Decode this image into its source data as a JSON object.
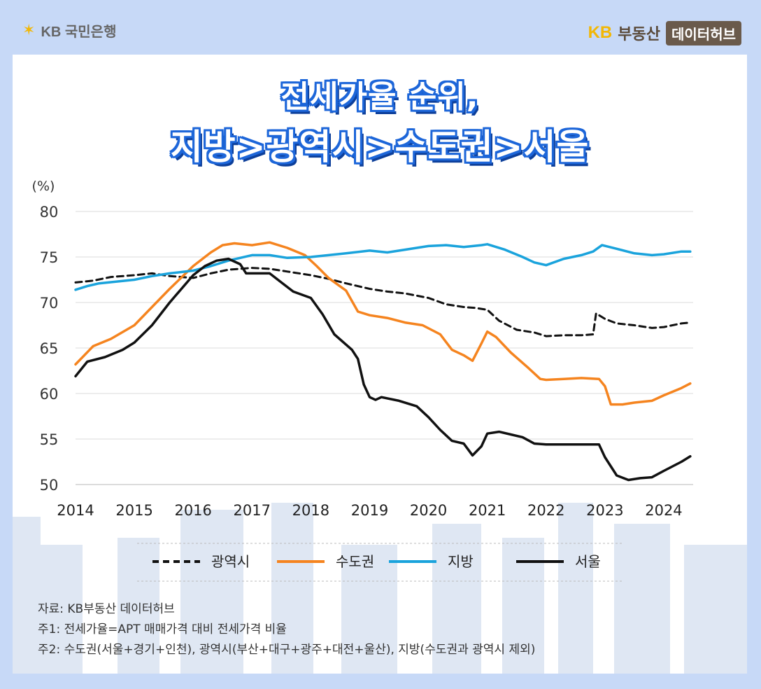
{
  "header": {
    "bank_logo": "KB 국민은행",
    "brand_kb": "KB",
    "brand_name": "부동산",
    "brand_badge": "데이터허브"
  },
  "title": {
    "line1": "전세가율 순위,",
    "line2": "지방>광역시>수도권>서울"
  },
  "notes": {
    "source": "자료: KB부동산 데이터허브",
    "note1": "주1: 전세가율=APT 매매가격 대비 전세가격 비율",
    "note2": "주2: 수도권(서울+경기+인천), 광역시(부산+대구+광주+대전+울산), 지방(수도권과 광역시 제외)"
  },
  "chart_data": {
    "type": "line",
    "title": "전세가율 순위, 지방>광역시>수도권>서울",
    "ylabel": "(%)",
    "xlabel": "",
    "ylim": [
      50,
      80
    ],
    "yticks": [
      50,
      55,
      60,
      65,
      70,
      75,
      80
    ],
    "xlim": [
      2014,
      2024.5
    ],
    "xticks": [
      2014,
      2015,
      2016,
      2017,
      2018,
      2019,
      2020,
      2021,
      2022,
      2023,
      2024
    ],
    "grid": true,
    "legend_position": "bottom",
    "series": [
      {
        "name": "광역시",
        "color": "#111111",
        "style": "dashed",
        "points": [
          [
            2014,
            72.2
          ],
          [
            2014.3,
            72.4
          ],
          [
            2014.6,
            72.8
          ],
          [
            2015,
            73.0
          ],
          [
            2015.3,
            73.2
          ],
          [
            2015.6,
            72.9
          ],
          [
            2016,
            72.7
          ],
          [
            2016.3,
            73.2
          ],
          [
            2016.6,
            73.6
          ],
          [
            2017,
            73.8
          ],
          [
            2017.3,
            73.7
          ],
          [
            2017.6,
            73.4
          ],
          [
            2018,
            73.0
          ],
          [
            2018.3,
            72.6
          ],
          [
            2018.6,
            72.1
          ],
          [
            2019,
            71.5
          ],
          [
            2019.3,
            71.2
          ],
          [
            2019.6,
            71.0
          ],
          [
            2020,
            70.5
          ],
          [
            2020.3,
            69.8
          ],
          [
            2020.6,
            69.5
          ],
          [
            2020.8,
            69.4
          ],
          [
            2021,
            69.2
          ],
          [
            2021.2,
            68.0
          ],
          [
            2021.5,
            67.0
          ],
          [
            2021.8,
            66.7
          ],
          [
            2022,
            66.3
          ],
          [
            2022.3,
            66.4
          ],
          [
            2022.6,
            66.4
          ],
          [
            2022.8,
            66.5
          ],
          [
            2022.85,
            68.8
          ],
          [
            2023,
            68.2
          ],
          [
            2023.2,
            67.7
          ],
          [
            2023.5,
            67.5
          ],
          [
            2023.8,
            67.2
          ],
          [
            2024,
            67.3
          ],
          [
            2024.3,
            67.7
          ],
          [
            2024.45,
            67.8
          ]
        ]
      },
      {
        "name": "수도권",
        "color": "#f5841f",
        "style": "solid",
        "points": [
          [
            2014,
            63.2
          ],
          [
            2014.3,
            65.2
          ],
          [
            2014.6,
            66.0
          ],
          [
            2015,
            67.5
          ],
          [
            2015.3,
            69.5
          ],
          [
            2015.6,
            71.5
          ],
          [
            2016,
            74.0
          ],
          [
            2016.3,
            75.5
          ],
          [
            2016.5,
            76.3
          ],
          [
            2016.7,
            76.5
          ],
          [
            2017,
            76.3
          ],
          [
            2017.3,
            76.6
          ],
          [
            2017.6,
            76.0
          ],
          [
            2017.9,
            75.2
          ],
          [
            2018.1,
            74.0
          ],
          [
            2018.3,
            72.7
          ],
          [
            2018.6,
            71.3
          ],
          [
            2018.8,
            69.0
          ],
          [
            2019,
            68.6
          ],
          [
            2019.3,
            68.3
          ],
          [
            2019.6,
            67.8
          ],
          [
            2019.9,
            67.5
          ],
          [
            2020.2,
            66.5
          ],
          [
            2020.4,
            64.8
          ],
          [
            2020.6,
            64.2
          ],
          [
            2020.75,
            63.6
          ],
          [
            2020.9,
            65.5
          ],
          [
            2021,
            66.8
          ],
          [
            2021.15,
            66.2
          ],
          [
            2021.4,
            64.5
          ],
          [
            2021.7,
            62.8
          ],
          [
            2021.9,
            61.6
          ],
          [
            2022,
            61.5
          ],
          [
            2022.3,
            61.6
          ],
          [
            2022.6,
            61.7
          ],
          [
            2022.9,
            61.6
          ],
          [
            2023,
            60.8
          ],
          [
            2023.1,
            58.8
          ],
          [
            2023.3,
            58.8
          ],
          [
            2023.5,
            59.0
          ],
          [
            2023.8,
            59.2
          ],
          [
            2024,
            59.8
          ],
          [
            2024.3,
            60.6
          ],
          [
            2024.45,
            61.1
          ]
        ]
      },
      {
        "name": "지방",
        "color": "#1aa3dc",
        "style": "solid",
        "points": [
          [
            2014,
            71.4
          ],
          [
            2014.2,
            71.8
          ],
          [
            2014.4,
            72.1
          ],
          [
            2014.7,
            72.3
          ],
          [
            2015,
            72.5
          ],
          [
            2015.3,
            72.9
          ],
          [
            2015.6,
            73.2
          ],
          [
            2016,
            73.5
          ],
          [
            2016.3,
            74.0
          ],
          [
            2016.6,
            74.6
          ],
          [
            2017,
            75.2
          ],
          [
            2017.3,
            75.2
          ],
          [
            2017.6,
            74.9
          ],
          [
            2018,
            75.0
          ],
          [
            2018.3,
            75.2
          ],
          [
            2018.6,
            75.4
          ],
          [
            2019,
            75.7
          ],
          [
            2019.3,
            75.5
          ],
          [
            2019.6,
            75.8
          ],
          [
            2020,
            76.2
          ],
          [
            2020.3,
            76.3
          ],
          [
            2020.6,
            76.1
          ],
          [
            2020.9,
            76.3
          ],
          [
            2021,
            76.4
          ],
          [
            2021.3,
            75.8
          ],
          [
            2021.6,
            75.0
          ],
          [
            2021.8,
            74.4
          ],
          [
            2022,
            74.1
          ],
          [
            2022.3,
            74.8
          ],
          [
            2022.6,
            75.2
          ],
          [
            2022.8,
            75.6
          ],
          [
            2022.95,
            76.3
          ],
          [
            2023.2,
            75.9
          ],
          [
            2023.5,
            75.4
          ],
          [
            2023.8,
            75.2
          ],
          [
            2024,
            75.3
          ],
          [
            2024.3,
            75.6
          ],
          [
            2024.45,
            75.6
          ]
        ]
      },
      {
        "name": "서울",
        "color": "#111111",
        "style": "solid",
        "points": [
          [
            2014,
            61.9
          ],
          [
            2014.2,
            63.5
          ],
          [
            2014.5,
            64.0
          ],
          [
            2014.8,
            64.8
          ],
          [
            2015,
            65.6
          ],
          [
            2015.3,
            67.5
          ],
          [
            2015.6,
            70.0
          ],
          [
            2016,
            73.0
          ],
          [
            2016.2,
            74.0
          ],
          [
            2016.4,
            74.6
          ],
          [
            2016.6,
            74.8
          ],
          [
            2016.8,
            74.2
          ],
          [
            2016.9,
            73.2
          ],
          [
            2017,
            73.2
          ],
          [
            2017.3,
            73.2
          ],
          [
            2017.5,
            72.2
          ],
          [
            2017.7,
            71.2
          ],
          [
            2018,
            70.5
          ],
          [
            2018.2,
            68.7
          ],
          [
            2018.4,
            66.5
          ],
          [
            2018.7,
            64.8
          ],
          [
            2018.8,
            63.8
          ],
          [
            2018.9,
            61.0
          ],
          [
            2019,
            59.6
          ],
          [
            2019.1,
            59.3
          ],
          [
            2019.2,
            59.6
          ],
          [
            2019.5,
            59.2
          ],
          [
            2019.8,
            58.6
          ],
          [
            2020,
            57.4
          ],
          [
            2020.2,
            56.0
          ],
          [
            2020.4,
            54.8
          ],
          [
            2020.6,
            54.5
          ],
          [
            2020.75,
            53.2
          ],
          [
            2020.9,
            54.2
          ],
          [
            2021,
            55.6
          ],
          [
            2021.2,
            55.8
          ],
          [
            2021.4,
            55.5
          ],
          [
            2021.6,
            55.2
          ],
          [
            2021.8,
            54.5
          ],
          [
            2022,
            54.4
          ],
          [
            2022.4,
            54.4
          ],
          [
            2022.9,
            54.4
          ],
          [
            2023,
            53.0
          ],
          [
            2023.2,
            51.0
          ],
          [
            2023.4,
            50.5
          ],
          [
            2023.6,
            50.7
          ],
          [
            2023.8,
            50.8
          ],
          [
            2024,
            51.5
          ],
          [
            2024.3,
            52.5
          ],
          [
            2024.45,
            53.1
          ]
        ]
      }
    ]
  }
}
